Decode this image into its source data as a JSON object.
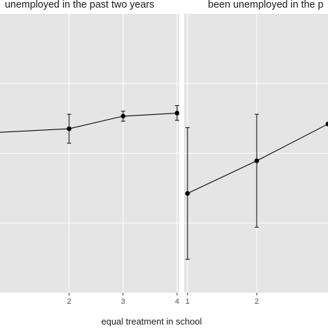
{
  "chart_data": {
    "type": "line",
    "xlabel": "equal treatment in school",
    "ylabel": "",
    "grid": true,
    "panels": [
      {
        "title": "unemployed in the past two years",
        "x_ticks": [
          2,
          3,
          4
        ],
        "xlim": [
          0.72,
          4.04
        ],
        "ylim": [
          0,
          1
        ],
        "points": [
          {
            "x": 0.7,
            "y": 0.575,
            "lower": null,
            "upper": null
          },
          {
            "x": 2,
            "y": 0.588,
            "lower": 0.536,
            "upper": 0.64
          },
          {
            "x": 3,
            "y": 0.633,
            "lower": 0.615,
            "upper": 0.651
          },
          {
            "x": 4,
            "y": 0.644,
            "lower": 0.618,
            "upper": 0.671
          }
        ]
      },
      {
        "title": "been unemployed in the p",
        "x_ticks": [
          1,
          2
        ],
        "xlim": [
          0.95,
          3.03
        ],
        "ylim": [
          0,
          1
        ],
        "points": [
          {
            "x": 1,
            "y": 0.356,
            "lower": 0.12,
            "upper": 0.592
          },
          {
            "x": 2,
            "y": 0.473,
            "lower": 0.235,
            "upper": 0.64
          },
          {
            "x": 3.03,
            "y": 0.605,
            "lower": null,
            "upper": null
          }
        ]
      }
    ]
  }
}
